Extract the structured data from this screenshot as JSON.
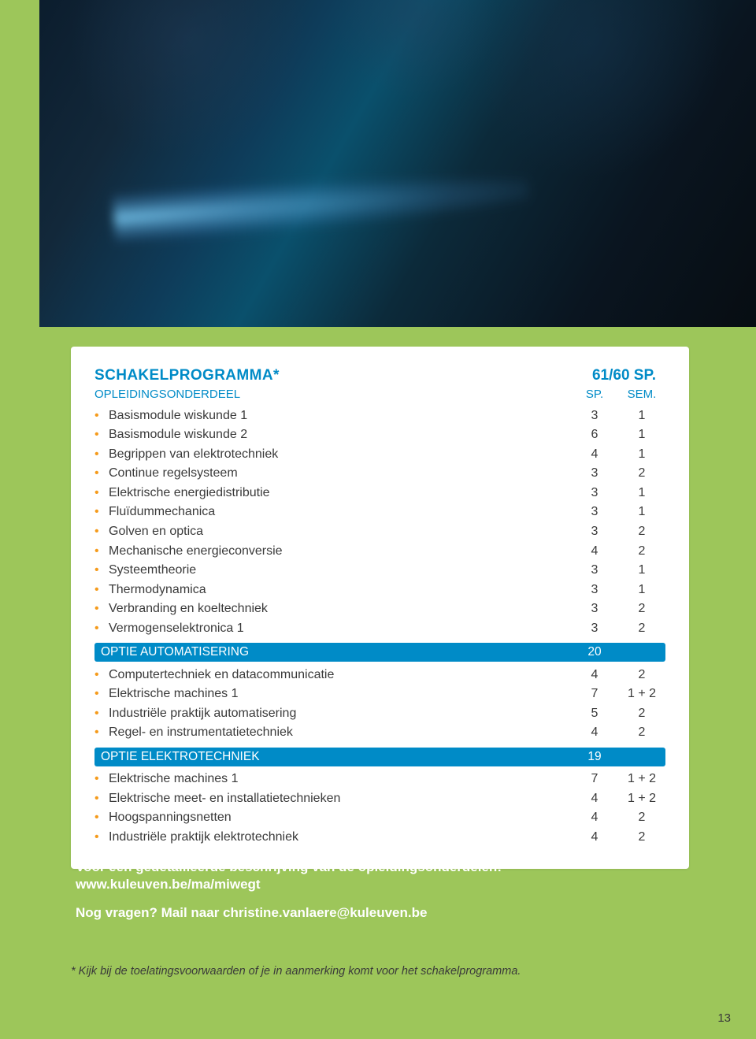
{
  "colors": {
    "green": "#9dc65a",
    "blue": "#008bc7",
    "orange": "#f59b1c",
    "text": "#3a3a3a",
    "white": "#ffffff"
  },
  "header": {
    "title": "SCHAKELPROGRAMMA*",
    "sp_header": "61/60 SP.",
    "sub_label": "OPLEIDINGSONDERDEEL",
    "col_sp": "SP.",
    "col_sem": "SEM."
  },
  "courses_main": [
    {
      "name": "Basismodule wiskunde 1",
      "sp": "3",
      "sem": "1"
    },
    {
      "name": "Basismodule wiskunde 2",
      "sp": "6",
      "sem": "1"
    },
    {
      "name": "Begrippen van elektrotechniek",
      "sp": "4",
      "sem": "1"
    },
    {
      "name": "Continue regelsysteem",
      "sp": "3",
      "sem": "2"
    },
    {
      "name": "Elektrische energiedistributie",
      "sp": "3",
      "sem": "1"
    },
    {
      "name": "Fluïdummechanica",
      "sp": "3",
      "sem": "1"
    },
    {
      "name": "Golven en optica",
      "sp": "3",
      "sem": "2"
    },
    {
      "name": "Mechanische energieconversie",
      "sp": "4",
      "sem": "2"
    },
    {
      "name": "Systeemtheorie",
      "sp": "3",
      "sem": "1"
    },
    {
      "name": "Thermodynamica",
      "sp": "3",
      "sem": "1"
    },
    {
      "name": "Verbranding en koeltechniek",
      "sp": "3",
      "sem": "2"
    },
    {
      "name": "Vermogenselektronica 1",
      "sp": "3",
      "sem": "2"
    }
  ],
  "section_auto": {
    "title": "OPTIE AUTOMATISERING",
    "sp": "20"
  },
  "courses_auto": [
    {
      "name": "Computertechniek en datacommunicatie",
      "sp": "4",
      "sem": "2"
    },
    {
      "name": "Elektrische machines 1",
      "sp": "7",
      "sem": "1 + 2"
    },
    {
      "name": "Industriële praktijk automatisering",
      "sp": "5",
      "sem": "2"
    },
    {
      "name": "Regel- en instrumentatietechniek",
      "sp": "4",
      "sem": "2"
    }
  ],
  "section_elek": {
    "title": "OPTIE ELEKTROTECHNIEK",
    "sp": "19"
  },
  "courses_elek": [
    {
      "name": "Elektrische machines 1",
      "sp": "7",
      "sem": "1 + 2"
    },
    {
      "name": "Elektrische meet- en installatietechnieken",
      "sp": "4",
      "sem": "1 + 2"
    },
    {
      "name": "Hoogspanningsnetten",
      "sp": "4",
      "sem": "2"
    },
    {
      "name": "Industriële praktijk elektrotechniek",
      "sp": "4",
      "sem": "2"
    }
  ],
  "info": {
    "line1": "Voor een gedetailleerde beschrijving van de opleidingsonderdelen:",
    "link": "www.kuleuven.be/ma/miwegt",
    "question": "Nog vragen? Mail naar christine.vanlaere@kuleuven.be"
  },
  "footnote": "* Kijk bij de toelatingsvoorwaarden of je in aanmerking komt voor het schakelprogramma.",
  "page_num": "13"
}
